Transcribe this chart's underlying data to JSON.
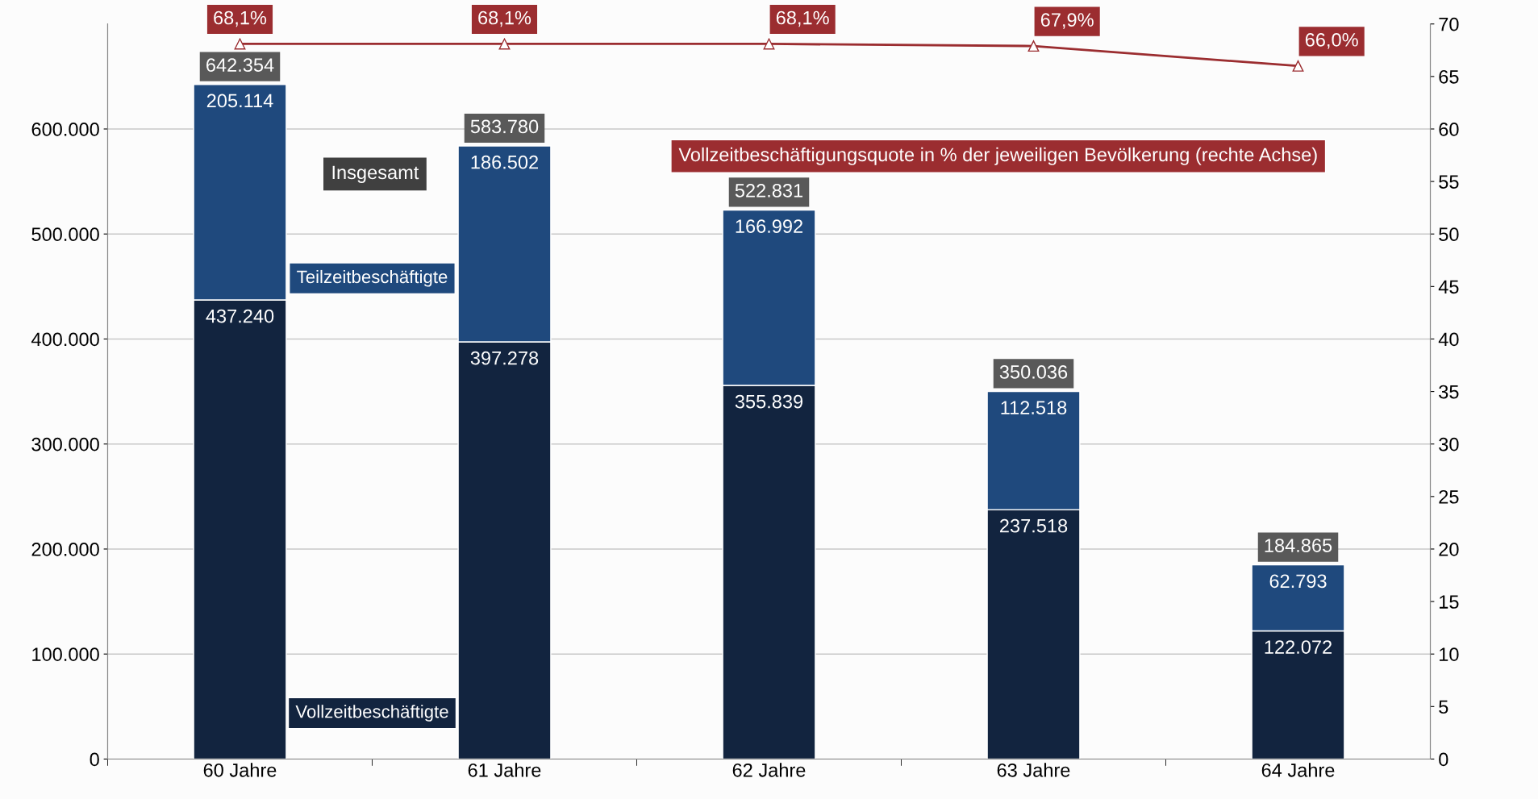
{
  "chart_data": {
    "type": "bar",
    "stacked": true,
    "categories": [
      "60 Jahre",
      "61 Jahre",
      "62 Jahre",
      "63 Jahre",
      "64 Jahre"
    ],
    "series": [
      {
        "name": "Vollzeitbeschäftigte",
        "color": "#12243f",
        "values": [
          437240,
          397278,
          355839,
          237518,
          122072
        ],
        "value_labels": [
          "437.240",
          "397.278",
          "355.839",
          "237.518",
          "122.072"
        ]
      },
      {
        "name": "Teilzeitbeschäftigte",
        "color": "#1f497d",
        "values": [
          205114,
          186502,
          166992,
          112518,
          62793
        ],
        "value_labels": [
          "205.114",
          "186.502",
          "166.992",
          "112.518",
          "62.793"
        ]
      },
      {
        "name": "Vollzeitbeschäftigungsquote in % der jeweiligen Bevölkerung (rechte Achse)",
        "type": "line",
        "axis": "y2",
        "color": "#9b2d30",
        "marker": "triangle",
        "values": [
          68.1,
          68.1,
          68.1,
          67.9,
          66.0
        ],
        "value_labels": [
          "68,1%",
          "68,1%",
          "68,1%",
          "67,9%",
          "66,0%"
        ]
      }
    ],
    "totals": [
      "642.354",
      "583.780",
      "522.831",
      "350.036",
      "184.865"
    ],
    "annotations": [
      "Insgesamt"
    ],
    "ylim": [
      0,
      700000
    ],
    "yticks": [
      0,
      {
        "value": 100000,
        "label": "100.000"
      },
      {
        "value": 200000,
        "label": "200.000"
      },
      {
        "value": 300000,
        "label": "300.000"
      },
      {
        "value": 400000,
        "label": "400.000"
      },
      {
        "value": 500000,
        "label": "500.000"
      },
      {
        "value": 600000,
        "label": "600.000"
      }
    ],
    "y2lim": [
      0,
      70
    ],
    "y2ticks": [
      0,
      5,
      10,
      15,
      20,
      25,
      30,
      35,
      40,
      45,
      50,
      55,
      60,
      65,
      70
    ],
    "grid": "y",
    "legend": false
  }
}
